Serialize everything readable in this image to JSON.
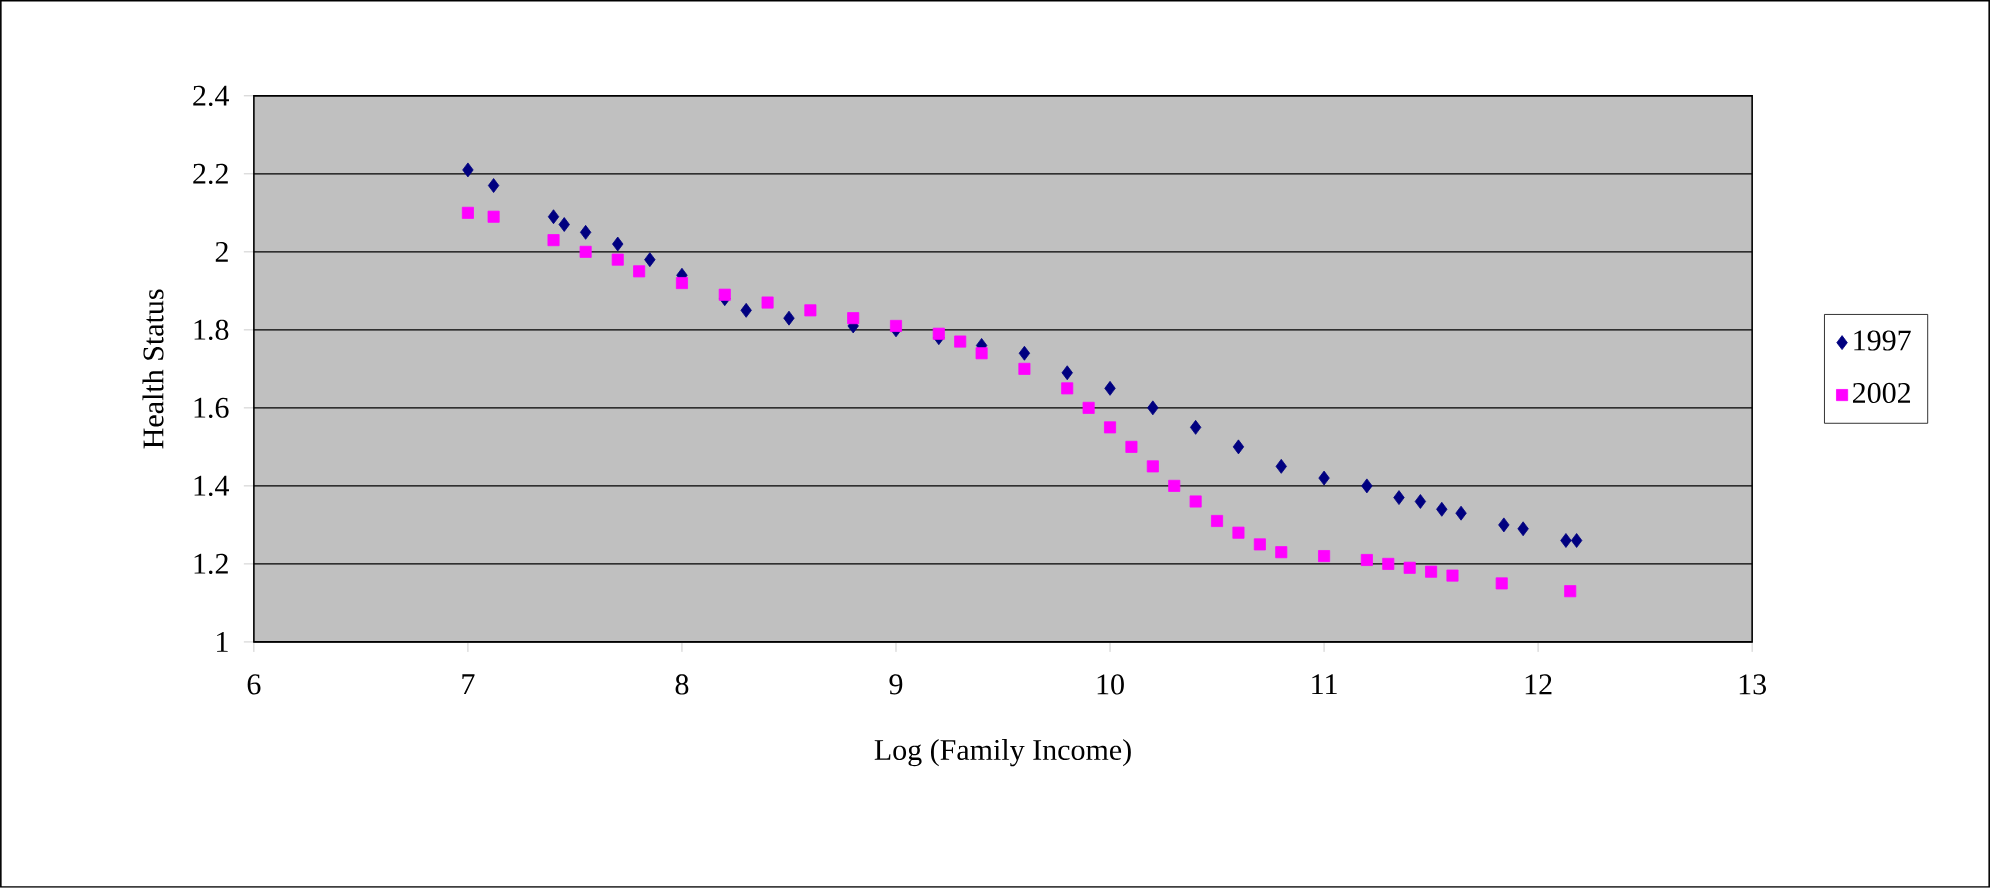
{
  "chart_data": {
    "type": "scatter",
    "xlabel": "Log (Family Income)",
    "ylabel": "Health Status",
    "xlim": [
      6,
      13
    ],
    "xticks": [
      6,
      7,
      8,
      9,
      10,
      11,
      12,
      13
    ],
    "ylim": [
      1,
      2.4
    ],
    "yticks": [
      1,
      1.2,
      1.4,
      1.6,
      1.8,
      2,
      2.2,
      2.4
    ],
    "grid": "y",
    "legend": "right",
    "series": [
      {
        "name": "1997",
        "color": "#000080",
        "marker": "diamond",
        "x": [
          7.0,
          7.12,
          7.4,
          7.45,
          7.55,
          7.7,
          7.85,
          8.0,
          8.2,
          8.3,
          8.5,
          8.8,
          9.0,
          9.2,
          9.4,
          9.6,
          9.8,
          10.0,
          10.2,
          10.4,
          10.6,
          10.8,
          11.0,
          11.2,
          11.35,
          11.45,
          11.55,
          11.64,
          11.84,
          11.93,
          12.13,
          12.18
        ],
        "values": [
          2.21,
          2.17,
          2.09,
          2.07,
          2.05,
          2.02,
          1.98,
          1.94,
          1.88,
          1.85,
          1.83,
          1.81,
          1.8,
          1.78,
          1.76,
          1.74,
          1.69,
          1.65,
          1.6,
          1.55,
          1.5,
          1.45,
          1.42,
          1.4,
          1.37,
          1.36,
          1.34,
          1.33,
          1.3,
          1.29,
          1.26,
          1.26
        ]
      },
      {
        "name": "2002",
        "color": "#ff00ff",
        "marker": "square",
        "x": [
          7.0,
          7.12,
          7.4,
          7.55,
          7.7,
          7.8,
          8.0,
          8.2,
          8.4,
          8.6,
          8.8,
          9.0,
          9.2,
          9.3,
          9.4,
          9.6,
          9.8,
          9.9,
          10.0,
          10.1,
          10.2,
          10.3,
          10.4,
          10.5,
          10.6,
          10.7,
          10.8,
          11.0,
          11.2,
          11.3,
          11.4,
          11.5,
          11.6,
          11.83,
          12.15
        ],
        "values": [
          2.1,
          2.09,
          2.03,
          2.0,
          1.98,
          1.95,
          1.92,
          1.89,
          1.87,
          1.85,
          1.83,
          1.81,
          1.79,
          1.77,
          1.74,
          1.7,
          1.65,
          1.6,
          1.55,
          1.5,
          1.45,
          1.4,
          1.36,
          1.31,
          1.28,
          1.25,
          1.23,
          1.22,
          1.21,
          1.2,
          1.19,
          1.18,
          1.17,
          1.15,
          1.13
        ]
      }
    ]
  }
}
